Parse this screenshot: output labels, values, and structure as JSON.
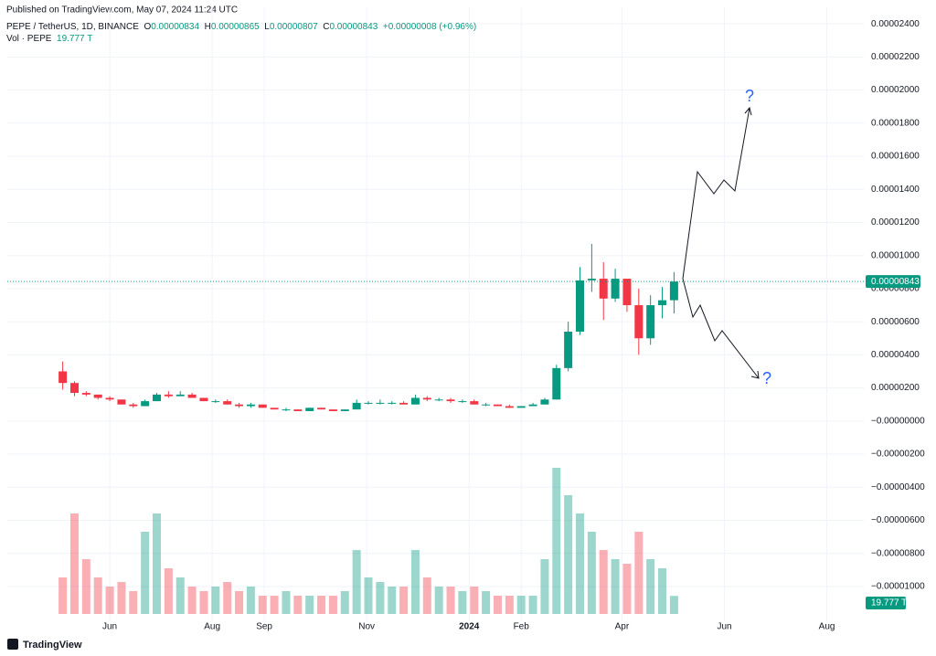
{
  "published": "Published on TradingView.com, May 07, 2024 11:24 UTC",
  "footer": "TradingView",
  "header": {
    "symbol": "PEPE / TetherUS, 1D, BINANCE",
    "letters": [
      "O",
      "H",
      "L",
      "C"
    ],
    "open": "0.00000834",
    "high": "0.00000865",
    "low": "0.00000807",
    "close": "0.00000843",
    "change": "+0.00000008 (+0.96%)",
    "volume_title": "Vol · PEPE",
    "volume_last": "19.777 T"
  },
  "chart_data": {
    "type": "candlestick",
    "up_color": "#089981",
    "down_color": "#f23645",
    "grid": true,
    "annotations": [
      "?",
      "?"
    ],
    "xlim": [
      -33,
      477
    ],
    "xticks": [
      {
        "value": 28,
        "label": "Jun"
      },
      {
        "value": 89,
        "label": "Aug"
      },
      {
        "value": 120,
        "label": "Sep"
      },
      {
        "value": 181,
        "label": "Nov"
      },
      {
        "value": 242,
        "label": "2024"
      },
      {
        "value": 273,
        "label": "Feb"
      },
      {
        "value": 333,
        "label": "Apr"
      },
      {
        "value": 394,
        "label": "Jun"
      },
      {
        "value": 455,
        "label": "Aug"
      }
    ],
    "ylim": [
      -1.21e-05,
      2.5e-05
    ],
    "yticks": [
      {
        "value": 2.4e-05,
        "label": "0.00002400"
      },
      {
        "value": 2.2e-05,
        "label": "0.00002200"
      },
      {
        "value": 2e-05,
        "label": "0.00002000"
      },
      {
        "value": 1.8e-05,
        "label": "0.00001800"
      },
      {
        "value": 1.6e-05,
        "label": "0.00001600"
      },
      {
        "value": 1.4e-05,
        "label": "0.00001400"
      },
      {
        "value": 1.2e-05,
        "label": "0.00001200"
      },
      {
        "value": 1e-05,
        "label": "0.00001000"
      },
      {
        "value": 8e-06,
        "label": "0.00000800"
      },
      {
        "value": 6e-06,
        "label": "0.00000600"
      },
      {
        "value": 4e-06,
        "label": "0.00000400"
      },
      {
        "value": 2e-06,
        "label": "0.00000200"
      },
      {
        "value": 0,
        "label": "−0.00000000"
      },
      {
        "value": -2e-06,
        "label": "−0.00000200"
      },
      {
        "value": -4e-06,
        "label": "−0.00000400"
      },
      {
        "value": -6e-06,
        "label": "−0.00000600"
      },
      {
        "value": -8e-06,
        "label": "−0.00000800"
      },
      {
        "value": -1e-05,
        "label": "−0.00001000"
      }
    ],
    "x": [
      0,
      7,
      14,
      21,
      28,
      35,
      42,
      49,
      56,
      63,
      70,
      77,
      84,
      91,
      98,
      105,
      112,
      119,
      126,
      133,
      140,
      147,
      154,
      161,
      168,
      175,
      182,
      189,
      196,
      203,
      210,
      217,
      224,
      231,
      238,
      245,
      252,
      259,
      266,
      273,
      280,
      287,
      294,
      301,
      308,
      315,
      322,
      329,
      336,
      343,
      350,
      357,
      364
    ],
    "open": [
      3e-06,
      2.3e-06,
      1.7e-06,
      1.6e-06,
      1.4e-06,
      1.3e-06,
      1e-06,
      9e-07,
      1.2e-06,
      1.6e-06,
      1.5e-06,
      1.6e-06,
      1.4e-06,
      1.2e-06,
      1.2e-06,
      1e-06,
      9e-07,
      1e-06,
      8e-07,
      7e-07,
      7e-07,
      6e-07,
      8e-07,
      7e-07,
      6e-07,
      7e-07,
      1.1e-06,
      1.1e-06,
      1.1e-06,
      1.1e-06,
      1e-06,
      1.4e-06,
      1.3e-06,
      1.3e-06,
      1.2e-06,
      1.2e-06,
      1e-06,
      1e-06,
      9e-07,
      8e-07,
      9e-07,
      1e-06,
      1.3e-06,
      3.2e-06,
      5.4e-06,
      8.5e-06,
      8.6e-06,
      7.4e-06,
      8.6e-06,
      7e-06,
      5e-06,
      7e-06,
      7.3e-06
    ],
    "high": [
      3.6e-06,
      2.4e-06,
      1.8e-06,
      1.6e-06,
      1.5e-06,
      1.3e-06,
      1.1e-06,
      1.3e-06,
      1.7e-06,
      1.8e-06,
      1.8e-06,
      1.7e-06,
      1.4e-06,
      1.3e-06,
      1.3e-06,
      1.1e-06,
      1.1e-06,
      1e-06,
      8e-07,
      8e-07,
      7e-07,
      8e-07,
      8e-07,
      7e-07,
      7e-07,
      1.3e-06,
      1.2e-06,
      1.3e-06,
      1.2e-06,
      1.2e-06,
      1.6e-06,
      1.5e-06,
      1.4e-06,
      1.4e-06,
      1.3e-06,
      1.3e-06,
      1.1e-06,
      1e-06,
      1e-06,
      9e-07,
      1.1e-06,
      1.4e-06,
      3.4e-06,
      6e-06,
      9.3e-06,
      1.07e-05,
      9.6e-06,
      9.2e-06,
      8.6e-06,
      8e-06,
      7.6e-06,
      8.1e-06,
      9e-06
    ],
    "low": [
      1.9e-06,
      1.5e-06,
      1.5e-06,
      1.3e-06,
      1.2e-06,
      1e-06,
      8e-07,
      9e-07,
      1.2e-06,
      1.4e-06,
      1.5e-06,
      1.4e-06,
      1.2e-06,
      1.1e-06,
      1e-06,
      8e-07,
      8e-07,
      8e-07,
      7e-07,
      6e-07,
      6e-07,
      6e-07,
      7e-07,
      6e-07,
      6e-07,
      7e-07,
      1e-06,
      1e-06,
      1e-06,
      1e-06,
      1e-06,
      1.2e-06,
      1.2e-06,
      1.1e-06,
      1.1e-06,
      1e-06,
      9e-07,
      9e-07,
      8e-07,
      8e-07,
      9e-07,
      1e-06,
      1.3e-06,
      3e-06,
      5.2e-06,
      7.8e-06,
      6.1e-06,
      7.2e-06,
      6.6e-06,
      4e-06,
      4.6e-06,
      6.2e-06,
      6.5e-06
    ],
    "close": [
      2.3e-06,
      1.7e-06,
      1.6e-06,
      1.4e-06,
      1.3e-06,
      1e-06,
      9e-07,
      1.2e-06,
      1.6e-06,
      1.5e-06,
      1.6e-06,
      1.4e-06,
      1.2e-06,
      1.2e-06,
      1e-06,
      9e-07,
      1e-06,
      8e-07,
      7e-07,
      7e-07,
      6e-07,
      8e-07,
      7e-07,
      6e-07,
      7e-07,
      1.1e-06,
      1.1e-06,
      1.1e-06,
      1.1e-06,
      1e-06,
      1.4e-06,
      1.3e-06,
      1.3e-06,
      1.2e-06,
      1.2e-06,
      1e-06,
      1e-06,
      9e-07,
      8e-07,
      9e-07,
      1e-06,
      1.3e-06,
      3.2e-06,
      5.4e-06,
      8.5e-06,
      8.6e-06,
      7.4e-06,
      8.6e-06,
      7e-06,
      5e-06,
      7e-06,
      7.3e-06,
      8.43e-06
    ],
    "volume": [
      40,
      110,
      60,
      40,
      30,
      35,
      25,
      90,
      110,
      50,
      40,
      30,
      25,
      30,
      35,
      25,
      30,
      20,
      20,
      25,
      20,
      20,
      20,
      20,
      25,
      70,
      40,
      35,
      30,
      30,
      70,
      40,
      30,
      30,
      25,
      30,
      25,
      20,
      20,
      20,
      20,
      60,
      160,
      130,
      110,
      90,
      70,
      60,
      55,
      90,
      60,
      50,
      19.777
    ]
  }
}
